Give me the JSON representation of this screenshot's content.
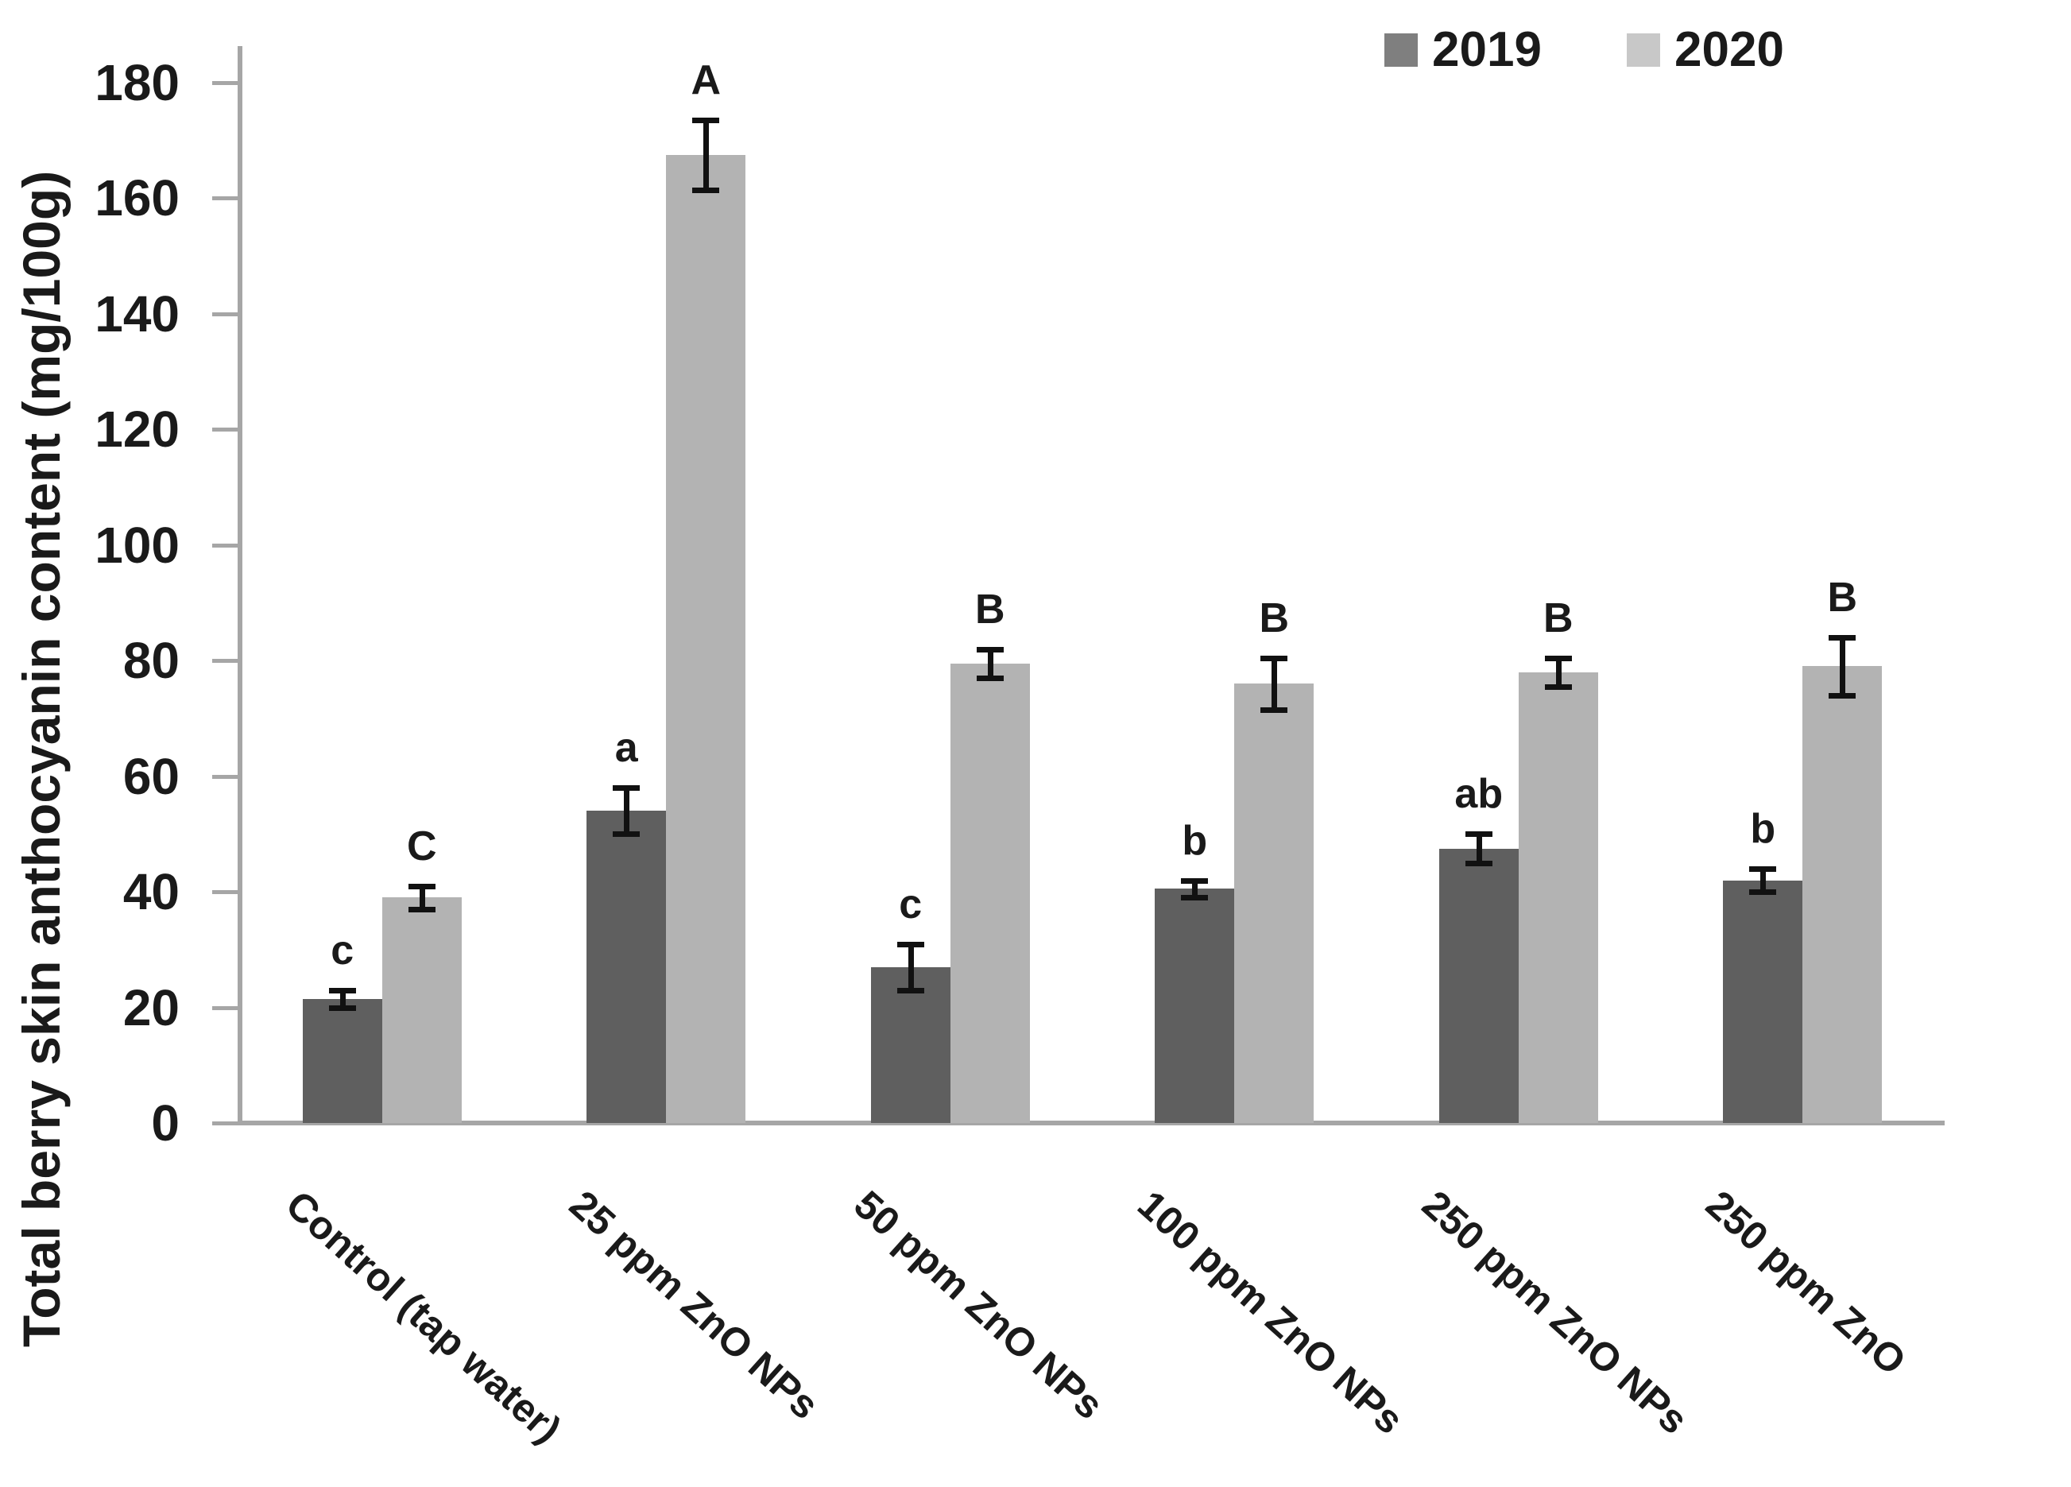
{
  "chart_data": {
    "type": "bar",
    "title": "",
    "xlabel": "",
    "ylabel": "Total berry skin anthocyanin content (mg/100g)",
    "ylim": [
      0,
      180
    ],
    "ytick_step": 20,
    "ytick_labels": [
      "0",
      "20",
      "40",
      "60",
      "80",
      "100",
      "120",
      "140",
      "160",
      "180"
    ],
    "grid": false,
    "legend_position": "top-right",
    "legend": [
      "2019",
      "2020"
    ],
    "categories": [
      "Control (tap water)",
      "25 ppm ZnO NPs",
      "50 ppm ZnO NPs",
      "100 ppm ZnO NPs",
      "250 ppm ZnO NPs",
      "250 ppm ZnO"
    ],
    "series": [
      {
        "name": "2019",
        "color": "#5f5f5f",
        "legend_swatch_color": "#7f7f7f",
        "values": [
          21.5,
          54,
          27,
          40.5,
          47.5,
          42
        ],
        "errors": [
          1.5,
          4,
          4,
          1.5,
          2.5,
          2
        ],
        "sig_letters": [
          "c",
          "a",
          "c",
          "b",
          "ab",
          "b"
        ]
      },
      {
        "name": "2020",
        "color": "#b3b3b3",
        "legend_swatch_color": "#c8c8c8",
        "values": [
          39,
          167.5,
          79.5,
          76,
          78,
          79
        ],
        "errors": [
          2,
          6,
          2.5,
          4.5,
          2.5,
          5
        ],
        "sig_letters": [
          "C",
          "A",
          "B",
          "B",
          "B",
          "B"
        ]
      }
    ],
    "axis_color": "#a6a6a6",
    "text_color": "#1a1a1a",
    "error_bar_color": "#111111"
  }
}
